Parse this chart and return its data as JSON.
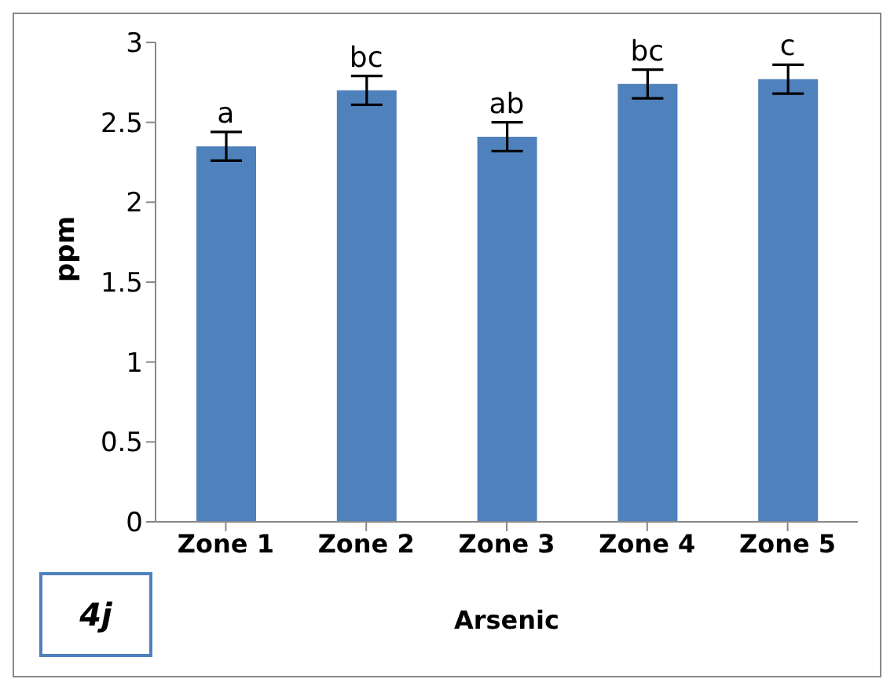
{
  "chart_data": {
    "type": "bar",
    "xlabel": "Arsenic",
    "ylabel": "ppm",
    "categories": [
      "Zone 1",
      "Zone 2",
      "Zone 3",
      "Zone 4",
      "Zone 5"
    ],
    "values": [
      2.35,
      2.7,
      2.41,
      2.74,
      2.77
    ],
    "errors": [
      0.09,
      0.09,
      0.09,
      0.09,
      0.09
    ],
    "color": "#4f81bd",
    "ylim": [
      0,
      3
    ],
    "yticks": [
      0,
      0.5,
      1,
      1.5,
      2,
      2.5,
      3
    ],
    "grid": false,
    "legend": false,
    "annotations": [
      {
        "text": "a",
        "x": "Zone 1",
        "y": 2.44
      },
      {
        "text": "bc",
        "x": "Zone 2",
        "y": 2.79
      },
      {
        "text": "ab",
        "x": "Zone 3",
        "y": 2.5
      },
      {
        "text": "bc",
        "x": "Zone 4",
        "y": 2.83
      },
      {
        "text": "c",
        "x": "Zone 5",
        "y": 2.86
      },
      "4j"
    ]
  }
}
